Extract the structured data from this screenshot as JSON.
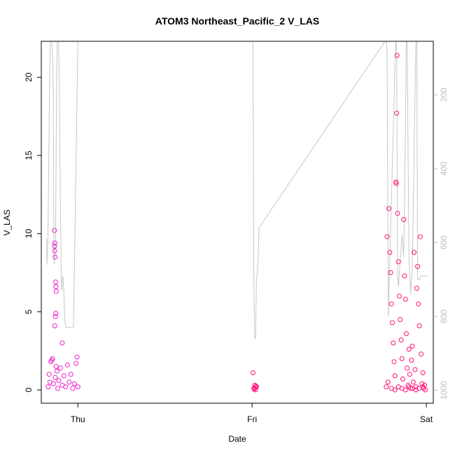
{
  "chart_data": {
    "type": "scatter",
    "title": "ATOM3 Northeast_Pacific_2 V_LAS",
    "xlabel": "Date",
    "ylabel": "V_LAS",
    "x_ticks": [
      {
        "label": "Thu",
        "value": 1.0
      },
      {
        "label": "Fri",
        "value": 2.0
      },
      {
        "label": "Sat",
        "value": 3.0
      }
    ],
    "xlim": [
      0.79,
      3.04
    ],
    "ylim": [
      -0.85,
      22.3
    ],
    "y_ticks": [
      0,
      5,
      10,
      15,
      20
    ],
    "y2_ticks": [
      200,
      400,
      600,
      800,
      1000
    ],
    "y2lim": [
      1035,
      55
    ],
    "grid": false,
    "colors": {
      "points_early": "#ee22cc",
      "points_late": "#ff1177",
      "altitude_line": "#c8c8c8",
      "axis": "#000000",
      "right_axis": "#bdbdbd"
    },
    "series": [
      {
        "points": [
          [
            0.83,
            0.2
          ],
          [
            0.84,
            0.5
          ],
          [
            0.835,
            1.0
          ],
          [
            0.85,
            1.9
          ],
          [
            0.845,
            1.8
          ],
          [
            0.855,
            2.0
          ],
          [
            0.86,
            0.4
          ],
          [
            0.87,
            0.8
          ],
          [
            0.865,
            10.2
          ],
          [
            0.868,
            9.4
          ],
          [
            0.866,
            9.2
          ],
          [
            0.867,
            8.9
          ],
          [
            0.869,
            8.5
          ],
          [
            0.872,
            6.9
          ],
          [
            0.874,
            6.6
          ],
          [
            0.876,
            6.3
          ],
          [
            0.873,
            4.9
          ],
          [
            0.871,
            4.7
          ],
          [
            0.868,
            4.1
          ],
          [
            0.88,
            1.2
          ],
          [
            0.89,
            0.6
          ],
          [
            0.9,
            1.4
          ],
          [
            0.91,
            0.3
          ],
          [
            0.92,
            0.9
          ],
          [
            0.93,
            0.2
          ],
          [
            0.94,
            1.6
          ],
          [
            0.95,
            0.5
          ],
          [
            0.96,
            1.0
          ],
          [
            0.97,
            0.1
          ],
          [
            0.98,
            0.4
          ],
          [
            0.99,
            1.7
          ],
          [
            0.995,
            2.1
          ],
          [
            1.0,
            0.2
          ],
          [
            0.91,
            3.0
          ],
          [
            0.875,
            1.5
          ],
          [
            0.885,
            0.1
          ]
        ]
      },
      {
        "points": [
          [
            2.01,
            0.1
          ],
          [
            2.015,
            0.3
          ],
          [
            2.02,
            0.0
          ],
          [
            2.005,
            1.1
          ],
          [
            2.025,
            0.2
          ],
          [
            2.012,
            0.05
          ],
          [
            2.018,
            0.15
          ],
          [
            2.022,
            0.25
          ],
          [
            2.77,
            0.2
          ],
          [
            2.78,
            0.5
          ],
          [
            2.775,
            9.8
          ],
          [
            2.785,
            11.6
          ],
          [
            2.79,
            8.8
          ],
          [
            2.795,
            7.5
          ],
          [
            2.8,
            5.5
          ],
          [
            2.805,
            4.3
          ],
          [
            2.81,
            3.0
          ],
          [
            2.815,
            1.8
          ],
          [
            2.82,
            0.9
          ],
          [
            2.825,
            13.3
          ],
          [
            2.828,
            13.2
          ],
          [
            2.83,
            17.7
          ],
          [
            2.832,
            21.4
          ],
          [
            2.835,
            11.3
          ],
          [
            2.84,
            8.2
          ],
          [
            2.845,
            6.0
          ],
          [
            2.85,
            4.5
          ],
          [
            2.855,
            3.2
          ],
          [
            2.86,
            2.0
          ],
          [
            2.865,
            0.7
          ],
          [
            2.87,
            10.9
          ],
          [
            2.875,
            7.3
          ],
          [
            2.88,
            5.8
          ],
          [
            2.885,
            3.6
          ],
          [
            2.89,
            1.4
          ],
          [
            2.895,
            0.3
          ],
          [
            2.9,
            2.6
          ],
          [
            2.905,
            1.0
          ],
          [
            2.91,
            0.1
          ],
          [
            2.915,
            1.9
          ],
          [
            2.92,
            2.8
          ],
          [
            2.925,
            0.5
          ],
          [
            2.93,
            8.8
          ],
          [
            2.935,
            1.3
          ],
          [
            2.94,
            0.2
          ],
          [
            2.945,
            6.5
          ],
          [
            2.95,
            7.9
          ],
          [
            2.955,
            5.5
          ],
          [
            2.96,
            4.1
          ],
          [
            2.965,
            9.8
          ],
          [
            2.97,
            2.3
          ],
          [
            2.975,
            0.4
          ],
          [
            2.98,
            1.1
          ],
          [
            2.985,
            0.1
          ],
          [
            2.99,
            0.3
          ],
          [
            2.995,
            0.0
          ],
          [
            2.8,
            0.1
          ],
          [
            2.82,
            0.0
          ],
          [
            2.84,
            0.2
          ],
          [
            2.86,
            0.1
          ],
          [
            2.88,
            0.0
          ],
          [
            2.9,
            0.2
          ],
          [
            2.92,
            0.1
          ],
          [
            2.94,
            0.0
          ],
          [
            2.96,
            0.1
          ],
          [
            2.98,
            0.2
          ]
        ]
      }
    ],
    "altitude_series": {
      "x": [
        0.82,
        0.822,
        0.828,
        0.838,
        0.842,
        0.85,
        0.858,
        0.862,
        0.865,
        0.872,
        0.878,
        0.882,
        0.888,
        0.892,
        0.9,
        0.905,
        0.908,
        0.912,
        0.918,
        0.925,
        0.932,
        0.935,
        0.945,
        0.96,
        0.97,
        0.975,
        1.0,
        1.005,
        1.01,
        2.0,
        2.005,
        2.01,
        2.015,
        2.02,
        2.025,
        2.03,
        2.035,
        2.04,
        2.77,
        2.775,
        2.78,
        2.782,
        2.79,
        2.8,
        2.81,
        2.82,
        2.825,
        2.83,
        2.835,
        2.84,
        2.85,
        2.86,
        2.87,
        2.88,
        2.885,
        2.89,
        2.9,
        2.91,
        2.92,
        2.93,
        2.94,
        2.945,
        2.95,
        2.96,
        2.97,
        2.975,
        2.98,
        2.99,
        3.0,
        3.01
      ],
      "y": [
        590,
        660,
        590,
        150,
        50,
        50,
        150,
        590,
        660,
        590,
        150,
        50,
        50,
        120,
        520,
        700,
        730,
        690,
        720,
        810,
        830,
        830,
        830,
        830,
        830,
        830,
        50,
        50,
        50,
        50,
        50,
        690,
        860,
        860,
        700,
        680,
        640,
        560,
        50,
        80,
        610,
        800,
        660,
        480,
        300,
        120,
        50,
        80,
        690,
        720,
        650,
        580,
        640,
        300,
        50,
        60,
        640,
        740,
        660,
        360,
        50,
        50,
        700,
        700,
        690,
        690,
        690,
        690,
        690,
        690
      ]
    }
  }
}
